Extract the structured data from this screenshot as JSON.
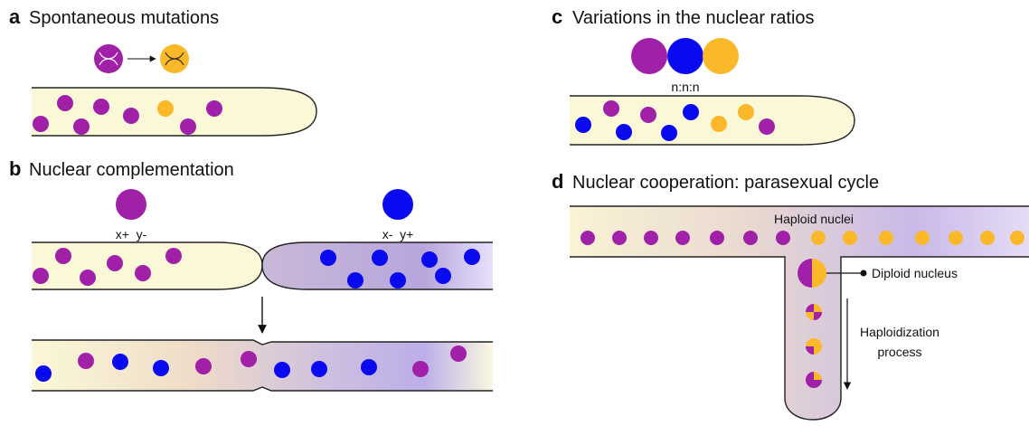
{
  "panels": [
    {
      "letter": "a",
      "title": "Spontaneous mutations"
    },
    {
      "letter": "b",
      "title": "Nuclear complementation",
      "labels": [
        "x+  y-",
        "x-  y+"
      ]
    },
    {
      "letter": "c",
      "title": "Variations in the nuclear ratios",
      "labels": [
        "n:n:n"
      ]
    },
    {
      "letter": "d",
      "title": "Nuclear cooperation: parasexual cycle",
      "labels": [
        "Haploid nuclei",
        "Diploid nucleus",
        "Haploidization",
        "process"
      ]
    }
  ]
}
